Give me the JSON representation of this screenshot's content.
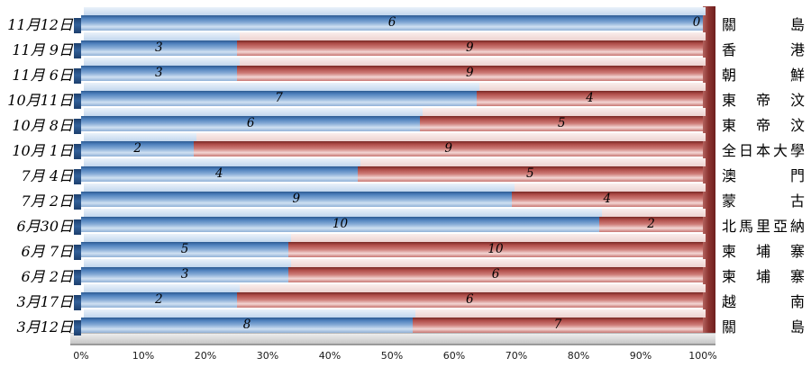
{
  "chart_data": {
    "type": "bar",
    "subtype": "horizontal_100pct_stacked_3d",
    "title": "",
    "legend": "none",
    "grid": false,
    "xlim": [
      0,
      100
    ],
    "x_ticks": [
      "0%",
      "10%",
      "20%",
      "30%",
      "40%",
      "50%",
      "60%",
      "70%",
      "80%",
      "90%",
      "100%"
    ],
    "categories": [
      "11月12日",
      "11月 9日",
      "11月 6日",
      "10月11日",
      "10月 8日",
      "10月 1日",
      "7月 4日",
      "7月 2日",
      "6月30日",
      "6月 7日",
      "6月 2日",
      "3月17日",
      "3月12日"
    ],
    "opponents": [
      "關島",
      "香港",
      "朝鮮",
      "東帝汶",
      "東帝汶",
      "全日本大學",
      "澳門",
      "蒙古",
      "北馬里亞納",
      "柬埔寨",
      "柬埔寨",
      "越南",
      "關島"
    ],
    "series": [
      {
        "name": "blue",
        "color": "#4f81bd",
        "values": [
          6,
          3,
          3,
          7,
          6,
          2,
          4,
          9,
          10,
          5,
          3,
          2,
          8
        ]
      },
      {
        "name": "red",
        "color": "#c0504d",
        "values": [
          0,
          9,
          9,
          4,
          5,
          9,
          5,
          4,
          2,
          10,
          6,
          6,
          7
        ]
      }
    ],
    "value_labels_shown": true
  },
  "colors": {
    "blue_bar": "#4f81bd",
    "red_bar": "#c0504d",
    "right_wall": "#8c3431",
    "floor": "#d0d0d0",
    "background": "#ffffff",
    "label_text": "#000000"
  }
}
